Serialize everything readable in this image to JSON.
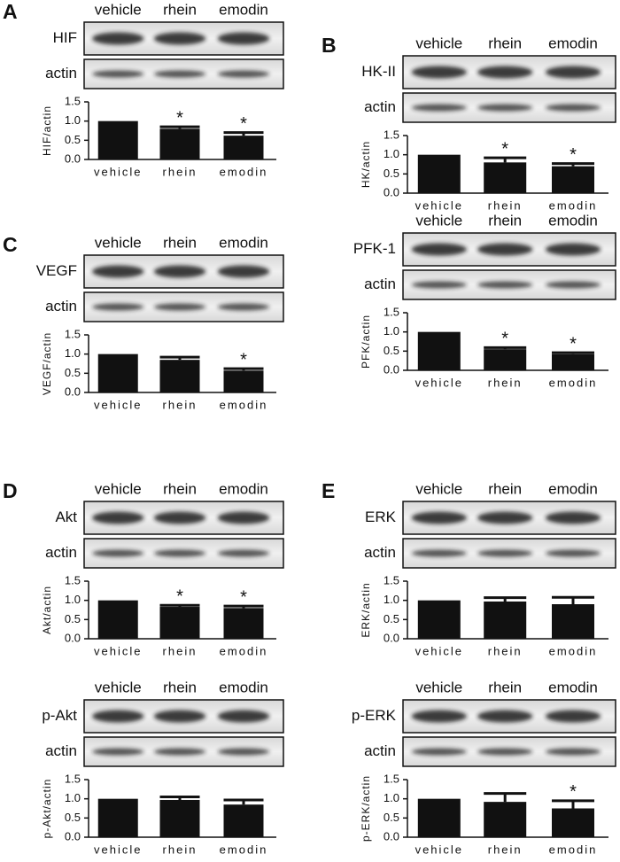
{
  "chart_data": [
    {
      "type": "bar",
      "panel": "A",
      "lanes": [
        "vehicle",
        "rhein",
        "emodin"
      ],
      "blots": [
        "HIF",
        "actin"
      ],
      "ylabel": "HIF/actin",
      "categories": [
        "vehicle",
        "rhein",
        "emodin"
      ],
      "values": [
        1.0,
        0.8,
        0.62
      ],
      "errors": [
        0,
        0.05,
        0.08
      ],
      "significance": [
        null,
        "*",
        "*"
      ],
      "ylim": [
        0,
        1.5
      ],
      "yticks": [
        {
          "value": 0,
          "label": "0.0"
        },
        {
          "value": 0.5,
          "label": "0.5"
        },
        {
          "value": 1,
          "label": "1.0"
        },
        {
          "value": 1.5,
          "label": "1.5"
        }
      ],
      "color": "#111111"
    },
    {
      "type": "bar",
      "panel": "B",
      "lanes": [
        "vehicle",
        "rhein",
        "emodin"
      ],
      "blots": [
        "HK-II",
        "actin"
      ],
      "ylabel": "HK/actin",
      "categories": [
        "vehicle",
        "rhein",
        "emodin"
      ],
      "values": [
        1.0,
        0.8,
        0.7
      ],
      "errors": [
        0,
        0.12,
        0.07
      ],
      "significance": [
        null,
        "*",
        "*"
      ],
      "ylim": [
        0,
        1.5
      ],
      "yticks": [
        {
          "value": 0,
          "label": "0.0"
        },
        {
          "value": 0.5,
          "label": "0.5"
        },
        {
          "value": 1,
          "label": "1.0"
        },
        {
          "value": 1.5,
          "label": "1.5"
        }
      ],
      "color": "#111111"
    },
    {
      "type": "bar",
      "lanes": [
        "vehicle",
        "rhein",
        "emodin"
      ],
      "blots": [
        "PFK-1",
        "actin"
      ],
      "ylabel": "PFK/actin",
      "categories": [
        "vehicle",
        "rhein",
        "emodin"
      ],
      "values": [
        1.0,
        0.55,
        0.42
      ],
      "errors": [
        0,
        0.04,
        0.04
      ],
      "significance": [
        null,
        "*",
        "*"
      ],
      "ylim": [
        0,
        1.5
      ],
      "yticks": [
        {
          "value": 0,
          "label": "0.0"
        },
        {
          "value": 0.5,
          "label": "0.5"
        },
        {
          "value": 1,
          "label": "1.0"
        },
        {
          "value": 1.5,
          "label": "1.5"
        }
      ],
      "color": "#111111"
    },
    {
      "type": "bar",
      "panel": "C",
      "lanes": [
        "vehicle",
        "rhein",
        "emodin"
      ],
      "blots": [
        "VEGF",
        "actin"
      ],
      "ylabel": "VEGF/actin",
      "categories": [
        "vehicle",
        "rhein",
        "emodin"
      ],
      "values": [
        1.0,
        0.85,
        0.57
      ],
      "errors": [
        0,
        0.07,
        0.05
      ],
      "significance": [
        null,
        null,
        "*"
      ],
      "ylim": [
        0,
        1.5
      ],
      "yticks": [
        {
          "value": 0,
          "label": "0.0"
        },
        {
          "value": 0.5,
          "label": "0.5"
        },
        {
          "value": 1,
          "label": "1.0"
        },
        {
          "value": 1.5,
          "label": "1.5"
        }
      ],
      "color": "#111111"
    },
    {
      "type": "bar",
      "panel": "D",
      "lanes": [
        "vehicle",
        "rhein",
        "emodin"
      ],
      "blots": [
        "Akt",
        "actin"
      ],
      "ylabel": "Akt/actin",
      "categories": [
        "vehicle",
        "rhein",
        "emodin"
      ],
      "values": [
        1.0,
        0.83,
        0.8
      ],
      "errors": [
        0,
        0.04,
        0.05
      ],
      "significance": [
        null,
        "*",
        "*"
      ],
      "ylim": [
        0,
        1.5
      ],
      "yticks": [
        {
          "value": 0,
          "label": "0.0"
        },
        {
          "value": 0.5,
          "label": "0.5"
        },
        {
          "value": 1,
          "label": "1.0"
        },
        {
          "value": 1.5,
          "label": "1.5"
        }
      ],
      "color": "#111111"
    },
    {
      "type": "bar",
      "lanes": [
        "vehicle",
        "rhein",
        "emodin"
      ],
      "blots": [
        "p-Akt",
        "actin"
      ],
      "ylabel": "p-Akt/actin",
      "categories": [
        "vehicle",
        "rhein",
        "emodin"
      ],
      "values": [
        1.0,
        0.97,
        0.85
      ],
      "errors": [
        0,
        0.08,
        0.12
      ],
      "significance": [
        null,
        null,
        null
      ],
      "ylim": [
        0,
        1.5
      ],
      "yticks": [
        {
          "value": 0,
          "label": "0.0"
        },
        {
          "value": 0.5,
          "label": "0.5"
        },
        {
          "value": 1,
          "label": "1.0"
        },
        {
          "value": 1.5,
          "label": "1.5"
        }
      ],
      "color": "#111111"
    },
    {
      "type": "bar",
      "panel": "E",
      "lanes": [
        "vehicle",
        "rhein",
        "emodin"
      ],
      "blots": [
        "ERK",
        "actin"
      ],
      "ylabel": "ERK/actin",
      "categories": [
        "vehicle",
        "rhein",
        "emodin"
      ],
      "values": [
        1.0,
        0.97,
        0.9
      ],
      "errors": [
        0,
        0.1,
        0.18
      ],
      "significance": [
        null,
        null,
        null
      ],
      "ylim": [
        0,
        1.5
      ],
      "yticks": [
        {
          "value": 0,
          "label": "0.0"
        },
        {
          "value": 0.5,
          "label": "0.5"
        },
        {
          "value": 1,
          "label": "1.0"
        },
        {
          "value": 1.5,
          "label": "1.5"
        }
      ],
      "color": "#111111"
    },
    {
      "type": "bar",
      "lanes": [
        "vehicle",
        "rhein",
        "emodin"
      ],
      "blots": [
        "p-ERK",
        "actin"
      ],
      "ylabel": "p-ERK/actin",
      "categories": [
        "vehicle",
        "rhein",
        "emodin"
      ],
      "values": [
        1.0,
        0.92,
        0.75
      ],
      "errors": [
        0,
        0.22,
        0.2
      ],
      "significance": [
        null,
        null,
        "*"
      ],
      "ylim": [
        0,
        1.5
      ],
      "yticks": [
        {
          "value": 0,
          "label": "0.0"
        },
        {
          "value": 0.5,
          "label": "0.5"
        },
        {
          "value": 1,
          "label": "1.0"
        },
        {
          "value": 1.5,
          "label": "1.5"
        }
      ],
      "color": "#111111"
    }
  ]
}
